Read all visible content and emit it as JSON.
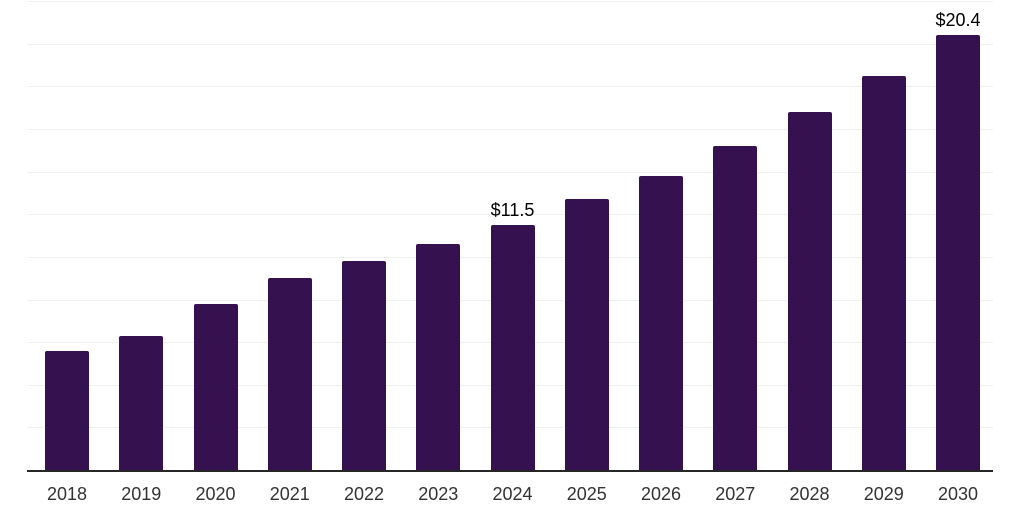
{
  "chart_data": {
    "type": "bar",
    "title": "",
    "xlabel": "",
    "ylabel": "",
    "categories": [
      "2018",
      "2019",
      "2020",
      "2021",
      "2022",
      "2023",
      "2024",
      "2025",
      "2026",
      "2027",
      "2028",
      "2029",
      "2030"
    ],
    "values": [
      5.6,
      6.3,
      7.8,
      9.0,
      9.8,
      10.6,
      11.5,
      12.7,
      13.8,
      15.2,
      16.8,
      18.5,
      20.4
    ],
    "value_labels": {
      "2024": "$11.5",
      "2030": "$20.4"
    },
    "ylim": [
      0,
      22
    ],
    "gridline_step": 2,
    "grid": "horizontal-only",
    "y_tick_labels": "none",
    "legend_position": "none",
    "colors": {
      "bar": "#361150",
      "gridline": "#f0f0f0",
      "axis_line": "#262626",
      "tick_label": "#333333",
      "value_label": "#000000",
      "background": "#ffffff"
    }
  }
}
